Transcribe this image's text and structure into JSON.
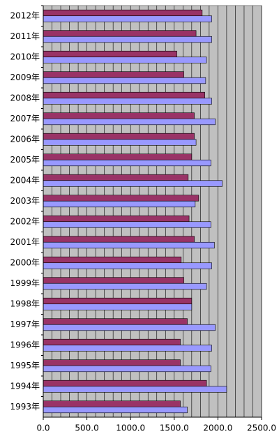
{
  "chart_data": {
    "type": "hbar",
    "categories": [
      "2012年",
      "2011年",
      "2010年",
      "2009年",
      "2008年",
      "2007年",
      "2006年",
      "2005年",
      "2004年",
      "2003年",
      "2002年",
      "2001年",
      "2000年",
      "1999年",
      "1998年",
      "1997年",
      "1996年",
      "1995年",
      "1994年",
      "1993年"
    ],
    "series": [
      {
        "color": "#993366",
        "values": [
          1820,
          1750,
          1530,
          1610,
          1850,
          1730,
          1730,
          1700,
          1660,
          1780,
          1670,
          1730,
          1580,
          1610,
          1700,
          1650,
          1570,
          1570,
          1870,
          1570
        ]
      },
      {
        "color": "#9999ff",
        "values": [
          1930,
          1930,
          1870,
          1860,
          1930,
          1970,
          1750,
          1920,
          2050,
          1740,
          1920,
          1960,
          1930,
          1870,
          1700,
          1970,
          1930,
          1920,
          2100,
          1650
        ]
      }
    ],
    "xlim": [
      0,
      2500
    ],
    "xticks": [
      {
        "value": 0,
        "label": "0.0"
      },
      {
        "value": 500,
        "label": "500.0"
      },
      {
        "value": 1000,
        "label": "1000.0"
      },
      {
        "value": 1500,
        "label": "1500.0"
      },
      {
        "value": 2000,
        "label": "2000.0"
      },
      {
        "value": 2500,
        "label": "2500.0"
      }
    ],
    "xgrid": [
      0,
      100,
      200,
      300,
      400,
      500,
      600,
      700,
      800,
      900,
      1000,
      1100,
      1200,
      1300,
      1400,
      1500,
      1600,
      1700,
      1800,
      1900,
      2000,
      2100,
      2200,
      2300,
      2400,
      2500
    ],
    "grid": true
  }
}
